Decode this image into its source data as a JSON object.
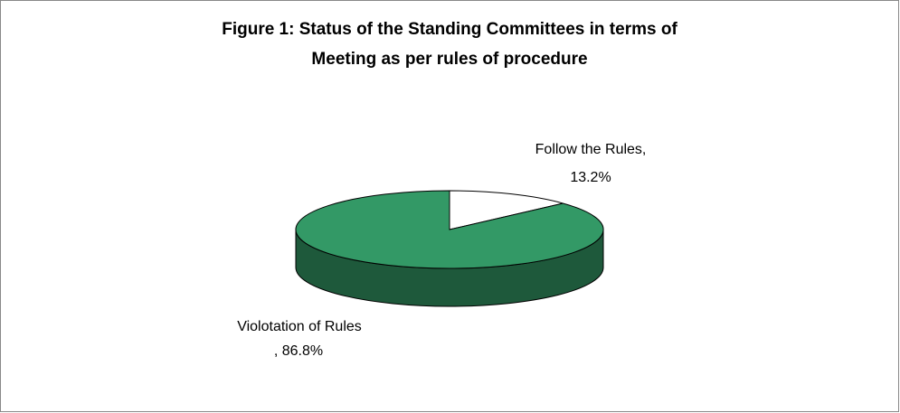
{
  "chart_data": {
    "type": "pie3d",
    "title": [
      "Figure 1: Status of the Standing Committees in terms of",
      "Meeting as per rules of procedure"
    ],
    "categories": [
      "Follow the Rules,",
      "Violotation of Rules"
    ],
    "values": [
      13.2,
      86.8
    ],
    "value_labels": [
      "13.2%",
      ", 86.8%"
    ],
    "colors": [
      "#ffffff",
      "#339966"
    ]
  }
}
